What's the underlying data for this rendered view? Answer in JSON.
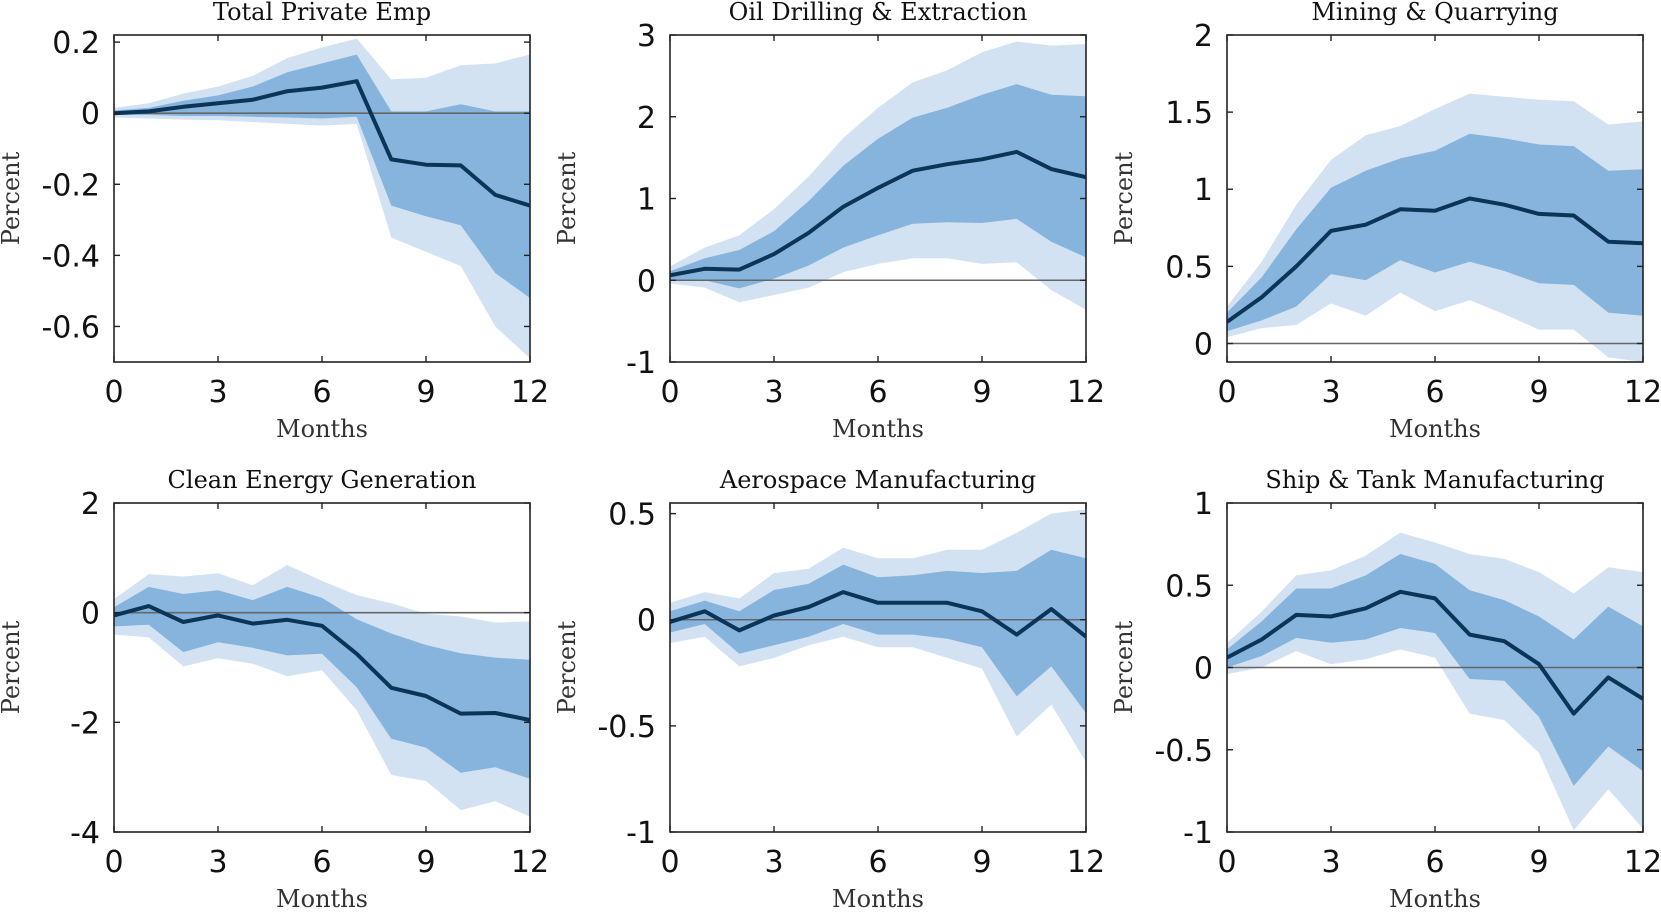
{
  "colors": {
    "band_outer": "#d3e2f2",
    "band_inner": "#86b4dd",
    "line": "#0b3457",
    "zero_line": "#666666",
    "axis": "#222222"
  },
  "chart_data": [
    {
      "type": "line",
      "title": "Total Private Emp",
      "xlabel": "Months",
      "ylabel": "Percent",
      "xlim": [
        0,
        12
      ],
      "ylim": [
        -0.7,
        0.22
      ],
      "xticks": [
        0,
        3,
        6,
        9,
        12
      ],
      "xtick_labels": [
        "0",
        "3",
        "6",
        "9",
        "12"
      ],
      "yticks": [
        0.2,
        0,
        -0.2,
        -0.4,
        -0.6
      ],
      "ytick_labels": [
        "0.2",
        "0",
        "-0.2",
        "-0.4",
        "-0.6"
      ],
      "x": [
        0,
        1,
        2,
        3,
        4,
        5,
        6,
        7,
        8,
        9,
        10,
        11,
        12
      ],
      "series": [
        {
          "name": "point estimate",
          "values": [
            0.0,
            0.005,
            0.018,
            0.028,
            0.038,
            0.062,
            0.072,
            0.09,
            -0.13,
            -0.145,
            -0.147,
            -0.23,
            -0.26
          ]
        },
        {
          "name": "inner band lower",
          "values": [
            -0.005,
            -0.005,
            -0.008,
            -0.008,
            -0.01,
            -0.012,
            -0.015,
            -0.01,
            -0.26,
            -0.29,
            -0.315,
            -0.45,
            -0.52
          ]
        },
        {
          "name": "inner band upper",
          "values": [
            0.008,
            0.015,
            0.035,
            0.05,
            0.075,
            0.115,
            0.14,
            0.165,
            0.005,
            0.005,
            0.025,
            0.005,
            0.005
          ]
        },
        {
          "name": "outer band lower",
          "values": [
            -0.012,
            -0.015,
            -0.018,
            -0.02,
            -0.025,
            -0.03,
            -0.035,
            -0.03,
            -0.35,
            -0.39,
            -0.43,
            -0.6,
            -0.69
          ]
        },
        {
          "name": "outer band upper",
          "values": [
            0.015,
            0.028,
            0.055,
            0.075,
            0.105,
            0.155,
            0.185,
            0.21,
            0.095,
            0.1,
            0.135,
            0.14,
            0.165
          ]
        }
      ]
    },
    {
      "type": "line",
      "title": "Oil Drilling & Extraction",
      "xlabel": "Months",
      "ylabel": "Percent",
      "xlim": [
        0,
        12
      ],
      "ylim": [
        -1,
        3
      ],
      "xticks": [
        0,
        3,
        6,
        9,
        12
      ],
      "xtick_labels": [
        "0",
        "3",
        "6",
        "9",
        "12"
      ],
      "yticks": [
        3,
        2,
        1,
        0,
        -1
      ],
      "ytick_labels": [
        "3",
        "2",
        "1",
        "0",
        "-1"
      ],
      "x": [
        0,
        1,
        2,
        3,
        4,
        5,
        6,
        7,
        8,
        9,
        10,
        11,
        12
      ],
      "series": [
        {
          "name": "point estimate",
          "values": [
            0.06,
            0.14,
            0.13,
            0.32,
            0.58,
            0.9,
            1.13,
            1.34,
            1.42,
            1.48,
            1.57,
            1.36,
            1.26
          ]
        },
        {
          "name": "inner band lower",
          "values": [
            0.0,
            0.0,
            -0.1,
            0.02,
            0.18,
            0.4,
            0.55,
            0.69,
            0.71,
            0.7,
            0.75,
            0.47,
            0.28
          ]
        },
        {
          "name": "inner band upper",
          "values": [
            0.11,
            0.27,
            0.37,
            0.6,
            0.97,
            1.4,
            1.73,
            1.99,
            2.11,
            2.27,
            2.4,
            2.27,
            2.25
          ]
        },
        {
          "name": "outer band lower",
          "values": [
            -0.04,
            -0.09,
            -0.27,
            -0.18,
            -0.09,
            0.1,
            0.2,
            0.27,
            0.27,
            0.2,
            0.22,
            -0.12,
            -0.36
          ]
        },
        {
          "name": "outer band upper",
          "values": [
            0.17,
            0.4,
            0.55,
            0.87,
            1.27,
            1.74,
            2.11,
            2.42,
            2.57,
            2.79,
            2.92,
            2.87,
            2.89
          ]
        }
      ]
    },
    {
      "type": "line",
      "title": "Mining & Quarrying",
      "xlabel": "Months",
      "ylabel": "Percent",
      "xlim": [
        0,
        12
      ],
      "ylim": [
        -0.12,
        2
      ],
      "xticks": [
        0,
        3,
        6,
        9,
        12
      ],
      "xtick_labels": [
        "0",
        "3",
        "6",
        "9",
        "12"
      ],
      "yticks": [
        2,
        1.5,
        1,
        0.5,
        0
      ],
      "ytick_labels": [
        "2",
        "1.5",
        "1",
        "0.5",
        "0"
      ],
      "x": [
        0,
        1,
        2,
        3,
        4,
        5,
        6,
        7,
        8,
        9,
        10,
        11,
        12
      ],
      "series": [
        {
          "name": "point estimate",
          "values": [
            0.14,
            0.3,
            0.5,
            0.73,
            0.77,
            0.87,
            0.86,
            0.94,
            0.9,
            0.84,
            0.83,
            0.66,
            0.65
          ]
        },
        {
          "name": "inner band lower",
          "values": [
            0.08,
            0.15,
            0.24,
            0.45,
            0.41,
            0.54,
            0.46,
            0.53,
            0.47,
            0.39,
            0.38,
            0.2,
            0.18
          ]
        },
        {
          "name": "inner band upper",
          "values": [
            0.2,
            0.43,
            0.74,
            1.01,
            1.12,
            1.2,
            1.25,
            1.36,
            1.33,
            1.29,
            1.28,
            1.12,
            1.13
          ]
        },
        {
          "name": "outer band lower",
          "values": [
            0.04,
            0.1,
            0.12,
            0.26,
            0.18,
            0.33,
            0.21,
            0.28,
            0.19,
            0.09,
            0.09,
            -0.09,
            -0.12
          ]
        },
        {
          "name": "outer band upper",
          "values": [
            0.24,
            0.53,
            0.9,
            1.19,
            1.35,
            1.41,
            1.52,
            1.62,
            1.6,
            1.58,
            1.57,
            1.42,
            1.44
          ]
        }
      ]
    },
    {
      "type": "line",
      "title": "Clean Energy Generation",
      "xlabel": "Months",
      "ylabel": "Percent",
      "xlim": [
        0,
        12
      ],
      "ylim": [
        -4,
        2
      ],
      "xticks": [
        0,
        3,
        6,
        9,
        12
      ],
      "xtick_labels": [
        "0",
        "3",
        "6",
        "9",
        "12"
      ],
      "yticks": [
        2,
        0,
        -2,
        -4
      ],
      "ytick_labels": [
        "2",
        "0",
        "-2",
        "-4"
      ],
      "x": [
        0,
        1,
        2,
        3,
        4,
        5,
        6,
        7,
        8,
        9,
        10,
        11,
        12
      ],
      "series": [
        {
          "name": "point estimate",
          "values": [
            -0.05,
            0.12,
            -0.17,
            -0.05,
            -0.2,
            -0.13,
            -0.24,
            -0.75,
            -1.37,
            -1.52,
            -1.84,
            -1.83,
            -1.96
          ]
        },
        {
          "name": "inner band lower",
          "values": [
            -0.25,
            -0.22,
            -0.72,
            -0.54,
            -0.64,
            -0.78,
            -0.75,
            -1.36,
            -2.3,
            -2.46,
            -2.92,
            -2.82,
            -3.03
          ]
        },
        {
          "name": "inner band upper",
          "values": [
            0.1,
            0.47,
            0.34,
            0.41,
            0.23,
            0.47,
            0.27,
            -0.12,
            -0.38,
            -0.59,
            -0.74,
            -0.82,
            -0.86
          ]
        },
        {
          "name": "outer band lower",
          "values": [
            -0.4,
            -0.45,
            -0.98,
            -0.83,
            -0.93,
            -1.16,
            -1.05,
            -1.78,
            -2.96,
            -3.07,
            -3.6,
            -3.44,
            -3.72
          ]
        },
        {
          "name": "outer band upper",
          "values": [
            0.25,
            0.7,
            0.66,
            0.72,
            0.5,
            0.87,
            0.58,
            0.32,
            0.17,
            -0.02,
            -0.07,
            -0.18,
            -0.16
          ]
        }
      ]
    },
    {
      "type": "line",
      "title": "Aerospace Manufacturing",
      "xlabel": "Months",
      "ylabel": "Percent",
      "xlim": [
        0,
        12
      ],
      "ylim": [
        -1,
        0.55
      ],
      "xticks": [
        0,
        3,
        6,
        9,
        12
      ],
      "xtick_labels": [
        "0",
        "3",
        "6",
        "9",
        "12"
      ],
      "yticks": [
        0.5,
        0,
        -0.5,
        -1
      ],
      "ytick_labels": [
        "0.5",
        "0",
        "-0.5",
        "-1"
      ],
      "x": [
        0,
        1,
        2,
        3,
        4,
        5,
        6,
        7,
        8,
        9,
        10,
        11,
        12
      ],
      "series": [
        {
          "name": "point estimate",
          "values": [
            -0.01,
            0.04,
            -0.05,
            0.02,
            0.06,
            0.13,
            0.08,
            0.08,
            0.08,
            0.04,
            -0.07,
            0.05,
            -0.08
          ]
        },
        {
          "name": "inner band lower",
          "values": [
            -0.06,
            -0.02,
            -0.16,
            -0.12,
            -0.08,
            -0.02,
            -0.07,
            -0.07,
            -0.09,
            -0.13,
            -0.36,
            -0.22,
            -0.44
          ]
        },
        {
          "name": "inner band upper",
          "values": [
            0.04,
            0.09,
            0.04,
            0.14,
            0.17,
            0.26,
            0.2,
            0.21,
            0.23,
            0.22,
            0.23,
            0.33,
            0.29
          ]
        },
        {
          "name": "outer band lower",
          "values": [
            -0.11,
            -0.08,
            -0.22,
            -0.18,
            -0.12,
            -0.08,
            -0.13,
            -0.13,
            -0.18,
            -0.23,
            -0.55,
            -0.4,
            -0.67
          ]
        },
        {
          "name": "outer band upper",
          "values": [
            0.08,
            0.13,
            0.1,
            0.22,
            0.24,
            0.34,
            0.29,
            0.29,
            0.33,
            0.33,
            0.41,
            0.5,
            0.52
          ]
        }
      ]
    },
    {
      "type": "line",
      "title": "Ship & Tank Manufacturing",
      "xlabel": "Months",
      "ylabel": "Percent",
      "xlim": [
        0,
        12
      ],
      "ylim": [
        -1,
        1
      ],
      "xticks": [
        0,
        3,
        6,
        9,
        12
      ],
      "xtick_labels": [
        "0",
        "3",
        "6",
        "9",
        "12"
      ],
      "yticks": [
        1,
        0.5,
        0,
        -0.5,
        -1
      ],
      "ytick_labels": [
        "1",
        "0.5",
        "0",
        "-0.5",
        "-1"
      ],
      "x": [
        0,
        1,
        2,
        3,
        4,
        5,
        6,
        7,
        8,
        9,
        10,
        11,
        12
      ],
      "series": [
        {
          "name": "point estimate",
          "values": [
            0.06,
            0.17,
            0.32,
            0.31,
            0.36,
            0.46,
            0.42,
            0.2,
            0.16,
            0.02,
            -0.28,
            -0.06,
            -0.19
          ]
        },
        {
          "name": "inner band lower",
          "values": [
            0.0,
            0.07,
            0.18,
            0.15,
            0.17,
            0.24,
            0.21,
            -0.07,
            -0.08,
            -0.3,
            -0.72,
            -0.48,
            -0.63
          ]
        },
        {
          "name": "inner band upper",
          "values": [
            0.11,
            0.28,
            0.48,
            0.48,
            0.56,
            0.69,
            0.63,
            0.47,
            0.41,
            0.31,
            0.17,
            0.37,
            0.25
          ]
        },
        {
          "name": "outer band lower",
          "values": [
            -0.04,
            0.0,
            0.1,
            0.02,
            0.05,
            0.11,
            0.06,
            -0.28,
            -0.32,
            -0.52,
            -0.99,
            -0.74,
            -0.98
          ]
        },
        {
          "name": "outer band upper",
          "values": [
            0.15,
            0.34,
            0.56,
            0.59,
            0.68,
            0.82,
            0.76,
            0.69,
            0.66,
            0.58,
            0.45,
            0.61,
            0.58
          ]
        }
      ]
    }
  ]
}
